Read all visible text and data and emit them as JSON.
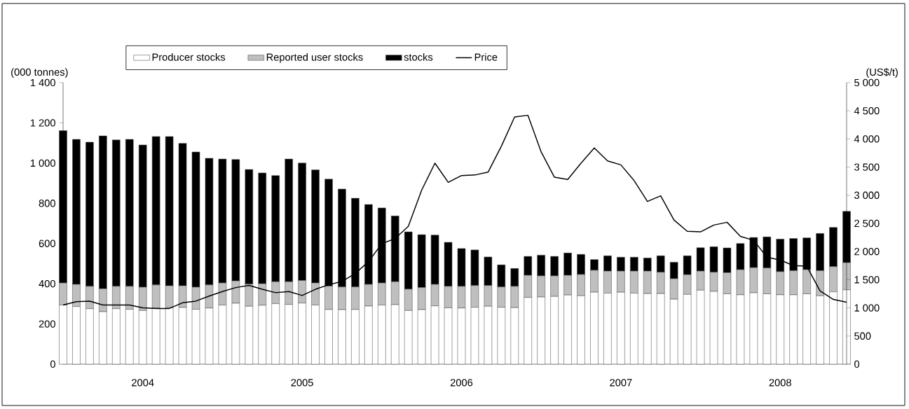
{
  "chart_data": {
    "type": "bar",
    "stacked": true,
    "ylabel": "(000 tonnes)",
    "y2label": "(US$/t)",
    "categories": [
      null,
      null,
      null,
      null,
      null,
      null,
      "2004",
      null,
      null,
      null,
      null,
      null,
      null,
      null,
      null,
      null,
      null,
      null,
      "2005",
      null,
      null,
      null,
      null,
      null,
      null,
      null,
      null,
      null,
      null,
      null,
      "2006",
      null,
      null,
      null,
      null,
      null,
      null,
      null,
      null,
      null,
      null,
      null,
      "2007",
      null,
      null,
      null,
      null,
      null,
      null,
      null,
      null,
      null,
      null,
      null,
      "2008",
      null,
      null,
      null,
      null,
      null
    ],
    "ylim": [
      0,
      1400
    ],
    "yticks": [
      0,
      200,
      400,
      600,
      800,
      {
        "value": 1000,
        "label": "1 000"
      },
      {
        "value": 1200,
        "label": "1 200"
      },
      {
        "value": 1400,
        "label": "1 400"
      }
    ],
    "y2lim": [
      0,
      5000
    ],
    "y2ticks": [
      0,
      500,
      {
        "value": 1000,
        "label": "1 000"
      },
      {
        "value": 1500,
        "label": "1 500"
      },
      {
        "value": 2000,
        "label": "2 000"
      },
      {
        "value": 2500,
        "label": "2 500"
      },
      {
        "value": 3000,
        "label": "3 000"
      },
      {
        "value": 3500,
        "label": "3 500"
      },
      {
        "value": 4000,
        "label": "4 000"
      },
      {
        "value": 4500,
        "label": "4 500"
      },
      {
        "value": 5000,
        "label": "5 000"
      }
    ],
    "legend": "top",
    "series": [
      {
        "name": "Producer stocks",
        "color": "#ffffff",
        "values": [
          294,
          287,
          276,
          261,
          276,
          273,
          267,
          279,
          281,
          282,
          273,
          279,
          294,
          303,
          288,
          293,
          301,
          297,
          304,
          294,
          272,
          271,
          272,
          289,
          294,
          296,
          267,
          271,
          290,
          280,
          279,
          283,
          288,
          283,
          281,
          332,
          334,
          337,
          344,
          340,
          358,
          353,
          358,
          353,
          351,
          351,
          323,
          347,
          368,
          362,
          350,
          345,
          355,
          350,
          345,
          345,
          350,
          340,
          360,
          370
        ]
      },
      {
        "name": "Reported user stocks",
        "color": "#bfbfbf",
        "values": [
          110,
          110,
          111,
          114,
          111,
          114,
          116,
          115,
          109,
          108,
          110,
          115,
          110,
          111,
          110,
          107,
          109,
          113,
          112,
          110,
          116,
          113,
          112,
          108,
          110,
          114,
          106,
          110,
          107,
          107,
          108,
          108,
          103,
          101,
          106,
          110,
          105,
          102,
          98,
          106,
          109,
          110,
          105,
          110,
          112,
          106,
          102,
          98,
          95,
          95,
          105,
          125,
          125,
          128,
          115,
          120,
          120,
          125,
          125,
          135
        ]
      },
      {
        "name": "stocks",
        "color": "#000000",
        "values": [
          757,
          721,
          717,
          760,
          728,
          731,
          707,
          738,
          742,
          708,
          672,
          630,
          616,
          604,
          570,
          551,
          528,
          610,
          584,
          562,
          532,
          487,
          441,
          397,
          373,
          327,
          285,
          263,
          245,
          219,
          188,
          177,
          142,
          110,
          89,
          94,
          103,
          97,
          111,
          100,
          53,
          76,
          69,
          69,
          65,
          82,
          82,
          94,
          116,
          127,
          123,
          130,
          150,
          155,
          162,
          160,
          158,
          185,
          195,
          255
        ]
      },
      {
        "name": "Price",
        "type": "line",
        "axis": "y2",
        "color": "#000000",
        "values": [
          1050,
          1110,
          1120,
          1050,
          1050,
          1050,
          1000,
          990,
          990,
          1090,
          1120,
          1210,
          1290,
          1360,
          1400,
          1330,
          1270,
          1290,
          1220,
          1330,
          1410,
          1470,
          1610,
          1820,
          2140,
          2230,
          2450,
          3090,
          3570,
          3230,
          3350,
          3360,
          3410,
          3870,
          4390,
          4420,
          3770,
          3320,
          3280,
          3570,
          3840,
          3610,
          3540,
          3260,
          2890,
          2990,
          2560,
          2360,
          2350,
          2470,
          2520,
          2270,
          2200,
          1900,
          1850,
          1750,
          1740,
          1300,
          1150,
          1100
        ]
      }
    ]
  }
}
